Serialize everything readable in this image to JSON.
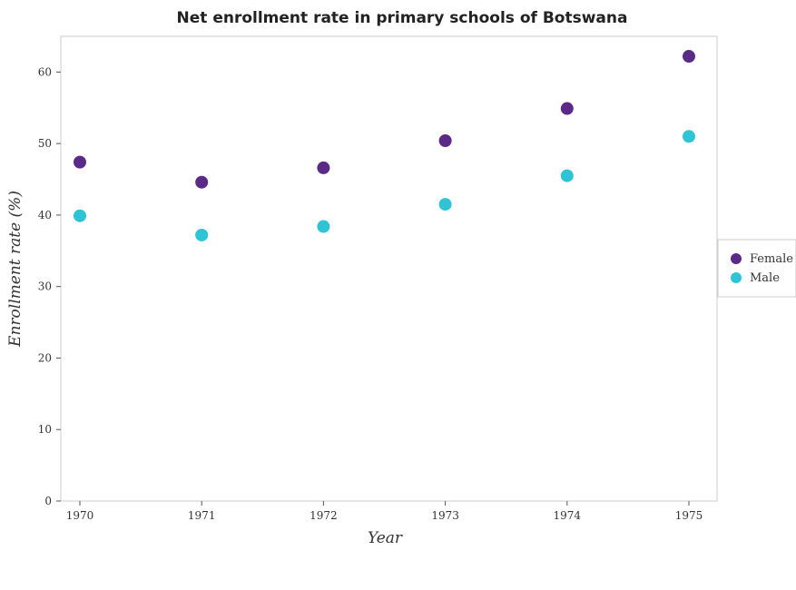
{
  "chart_data": {
    "type": "scatter",
    "title": "Net enrollment rate in primary schools of Botswana",
    "xlabel": "Year",
    "ylabel": "Enrollment rate (%)",
    "categories": [
      "1970",
      "1971",
      "1972",
      "1973",
      "1974",
      "1975"
    ],
    "ylim": [
      0,
      65
    ],
    "yticks": [
      "0",
      "10",
      "20",
      "30",
      "40",
      "50",
      "60"
    ],
    "grid": false,
    "legend_position": "right",
    "series": [
      {
        "name": "Female",
        "color": "#5b2a86",
        "values": [
          47.4,
          44.6,
          46.6,
          50.4,
          54.9,
          62.2
        ]
      },
      {
        "name": "Male",
        "color": "#2ec4d6",
        "values": [
          39.9,
          37.2,
          38.4,
          41.5,
          45.5,
          51.0
        ]
      }
    ]
  }
}
